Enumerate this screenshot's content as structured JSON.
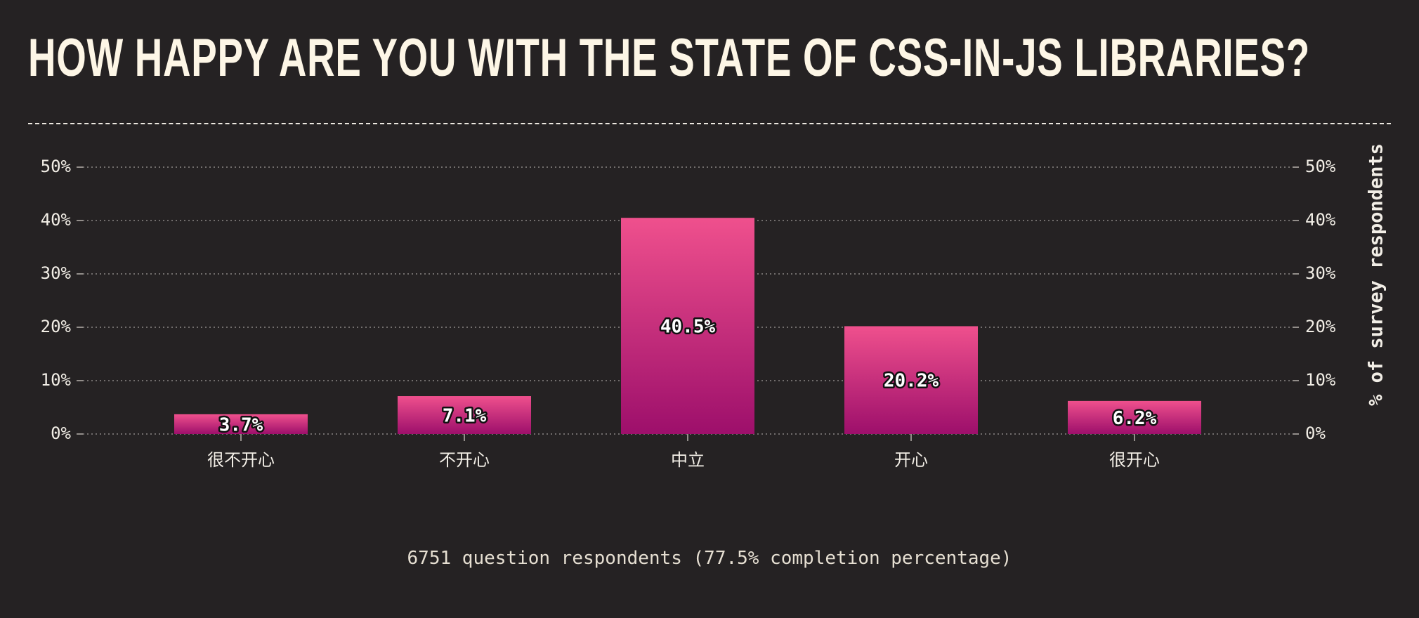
{
  "title": "HOW HAPPY ARE YOU WITH THE STATE OF CSS-IN-JS LIBRARIES?",
  "footer": "6751 question respondents (77.5% completion percentage)",
  "colors": {
    "background": "#252223",
    "bar_top": "#ef508d",
    "bar_bottom": "#9d0f6b",
    "text": "#f2eee6",
    "grid": "#8c8886"
  },
  "chart_data": {
    "type": "bar",
    "categories": [
      "很不开心",
      "不开心",
      "中立",
      "开心",
      "很开心"
    ],
    "values": [
      3.7,
      7.1,
      40.5,
      20.2,
      6.2
    ],
    "value_labels": [
      "3.7%",
      "7.1%",
      "40.5%",
      "20.2%",
      "6.2%"
    ],
    "ylim": [
      0,
      50
    ],
    "yticks": [
      "0%",
      "10%",
      "20%",
      "30%",
      "40%",
      "50%"
    ],
    "ylabel": "% of survey respondents",
    "grid": true
  }
}
